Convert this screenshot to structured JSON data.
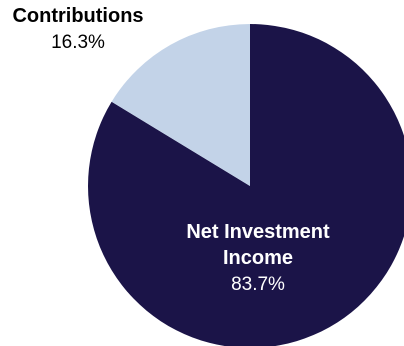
{
  "chart_data": {
    "type": "pie",
    "categories": [
      "Net Investment Income",
      "Contributions"
    ],
    "values": [
      83.7,
      16.3
    ],
    "value_labels": [
      "83.7%",
      "16.3%"
    ],
    "label_lines": [
      [
        "Net Investment",
        "Income"
      ],
      [
        "Contributions"
      ]
    ],
    "colors": [
      "#1b1448",
      "#c3d3e8"
    ],
    "label_colors": [
      "#ffffff",
      "#000000"
    ],
    "start_angle_deg": 0,
    "direction": "clockwise"
  }
}
